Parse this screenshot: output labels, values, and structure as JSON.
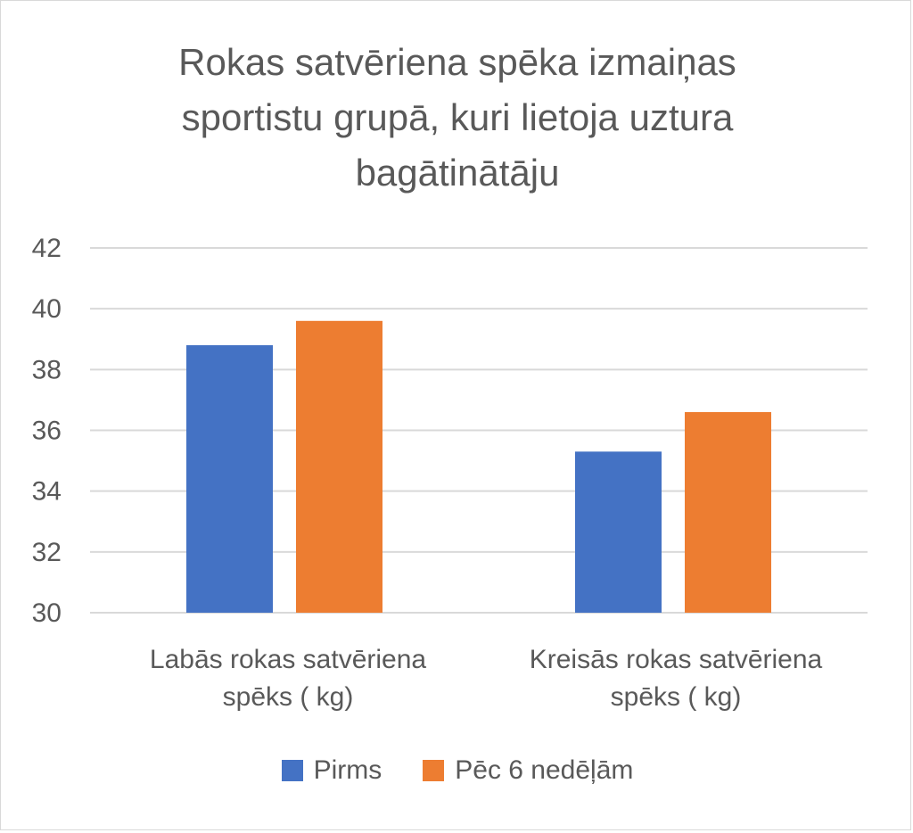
{
  "chart_data": {
    "type": "bar",
    "title_lines": [
      "Rokas satvēriena spēka izmaiņas",
      "sportistu grupā, kuri lietoja uztura",
      "bagātinātāju"
    ],
    "categories": [
      [
        "Labās rokas satvēriena",
        "spēks ( kg)"
      ],
      [
        "Kreisās rokas satvēriena",
        "spēks ( kg)"
      ]
    ],
    "series": [
      {
        "name": "Pirms",
        "color": "#4472c4",
        "values": [
          38.8,
          35.3
        ]
      },
      {
        "name": "Pēc 6 nedēļām",
        "color": "#ed7d31",
        "values": [
          39.6,
          36.6
        ]
      }
    ],
    "ylim": [
      30,
      42
    ],
    "yticks": [
      "30",
      "32",
      "34",
      "36",
      "38",
      "40",
      "42"
    ],
    "grid": true,
    "legend_position": "bottom"
  }
}
